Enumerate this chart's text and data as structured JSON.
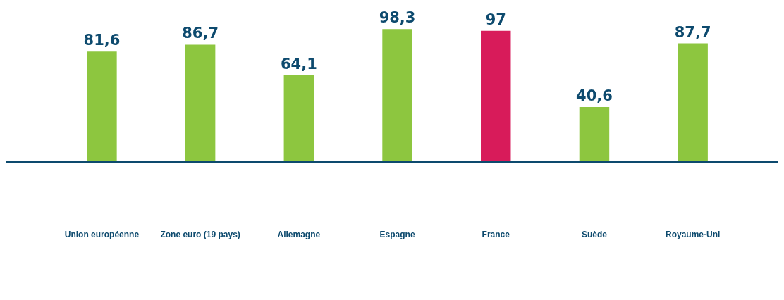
{
  "chart_data": {
    "type": "bar",
    "categories": [
      "Union européenne",
      "Zone euro (19 pays)",
      "Allemagne",
      "Espagne",
      "France",
      "Suède",
      "Royaume-Uni"
    ],
    "values": [
      81.6,
      86.7,
      64.1,
      98.3,
      97,
      40.6,
      87.7
    ],
    "colors": [
      "#8dc63f",
      "#8dc63f",
      "#8dc63f",
      "#8dc63f",
      "#d81b5a",
      "#8dc63f",
      "#8dc63f"
    ],
    "value_labels": [
      "81,6",
      "86,7",
      "64,1",
      "98,3",
      "97",
      "40,6",
      "87,7"
    ],
    "grid": false,
    "legend": false
  }
}
